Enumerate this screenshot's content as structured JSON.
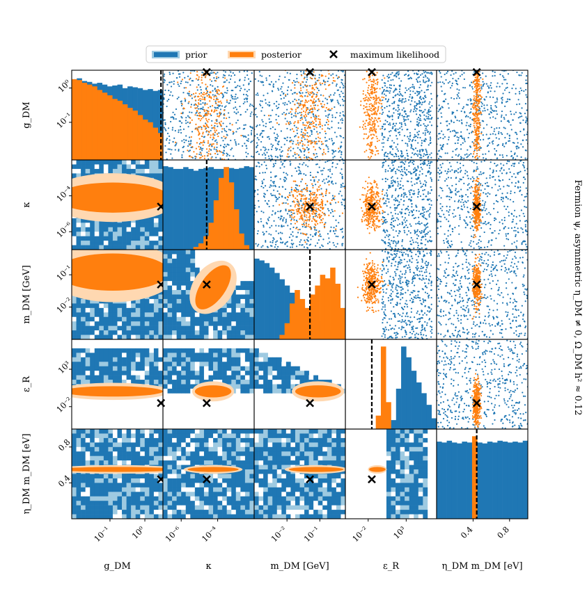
{
  "chart_data": {
    "type": "corner",
    "title": "Fermion ψ, asymmetric η_DM ≠ 0, Ω_DM h² ≈ 0.12",
    "colors": {
      "prior": "#1f77b4",
      "prior_light": "#9ecae1",
      "posterior": "#ff7f0e",
      "posterior_light": "#ffd8b1",
      "max_likelihood": "#000000"
    },
    "legend": [
      {
        "label": "prior",
        "kind": "prior"
      },
      {
        "label": "posterior",
        "kind": "posterior"
      },
      {
        "label": "maximum likelihood",
        "kind": "marker"
      }
    ],
    "legend_placement": "top-center",
    "parameters": [
      {
        "key": "g_DM",
        "label": "g_DM",
        "scale": "log",
        "range": [
          0.008,
          3.3
        ],
        "ticks": [
          {
            "v": 0.1,
            "t": "10⁻¹"
          },
          {
            "v": 1,
            "t": "10⁰"
          }
        ],
        "max_likelihood": 2.9
      },
      {
        "key": "kappa",
        "label": "κ",
        "scale": "log",
        "range": [
          1e-07,
          0.01
        ],
        "ticks": [
          {
            "v": 1e-06,
            "t": "10⁻⁶"
          },
          {
            "v": 0.0001,
            "t": "10⁻⁴"
          }
        ],
        "max_likelihood": 2.5e-05
      },
      {
        "key": "m_DM",
        "label": "m_DM [GeV]",
        "scale": "log",
        "range": [
          0.001,
          0.6
        ],
        "ticks": [
          {
            "v": 0.01,
            "t": "10⁻²"
          },
          {
            "v": 0.1,
            "t": "10⁻¹"
          }
        ],
        "max_likelihood": 0.05
      },
      {
        "key": "eps_R",
        "label": "ε_R",
        "scale": "log",
        "range": [
          1e-05,
          10000000.0
        ],
        "ticks": [
          {
            "v": 0.01,
            "t": "10⁻²"
          },
          {
            "v": 1000,
            "t": "10³"
          }
        ],
        "max_likelihood": 0.03
      },
      {
        "key": "eta_m",
        "label": "η_DM m_DM [eV]",
        "scale": "linear",
        "range": [
          0.0,
          1.0
        ],
        "ticks": [
          {
            "v": 0.4,
            "t": "0.4"
          },
          {
            "v": 0.8,
            "t": "0.8"
          }
        ],
        "max_likelihood": 0.44
      }
    ],
    "diagonal_histograms": [
      {
        "parameter": "g_DM",
        "prior": [
          0.9,
          0.91,
          0.88,
          0.87,
          0.85,
          0.86,
          0.84,
          0.82,
          0.83,
          0.84,
          0.8,
          0.82,
          0.81,
          0.8,
          0.78,
          0.79,
          0.77,
          0.78
        ],
        "posterior": [
          0.9,
          0.89,
          0.86,
          0.84,
          0.82,
          0.78,
          0.75,
          0.72,
          0.68,
          0.66,
          0.62,
          0.58,
          0.55,
          0.5,
          0.45,
          0.42,
          0.36,
          0.3
        ]
      },
      {
        "parameter": "kappa",
        "prior": [
          0.93,
          0.92,
          0.9,
          0.9,
          0.92,
          0.9,
          0.88,
          0.9,
          0.91,
          0.92,
          0.9,
          0.9,
          0.92,
          0.91,
          0.9,
          0.91,
          0.93,
          0.92
        ],
        "posterior": [
          0,
          0,
          0,
          0,
          0,
          0,
          0.03,
          0.07,
          0.15,
          0.3,
          0.55,
          0.8,
          0.92,
          0.75,
          0.45,
          0.18,
          0.05,
          0
        ]
      },
      {
        "parameter": "m_DM",
        "prior": [
          0.9,
          0.88,
          0.85,
          0.8,
          0.74,
          0.67,
          0.6,
          0.52,
          0.45,
          0.38,
          0.32,
          0.25,
          0.2,
          0.15,
          0.1,
          0.07,
          0.04,
          0.02
        ],
        "posterior": [
          0,
          0,
          0,
          0,
          0,
          0.05,
          0.18,
          0.4,
          0.55,
          0.45,
          0.35,
          0.5,
          0.6,
          0.72,
          0.68,
          0.8,
          0.62,
          0.35
        ]
      },
      {
        "parameter": "eps_R",
        "prior": [
          0,
          0,
          0,
          0,
          0,
          0,
          0,
          0,
          0,
          0.1,
          0.45,
          0.92,
          0.8,
          0.65,
          0.52,
          0.4,
          0.27,
          0.12
        ],
        "posterior": [
          0,
          0,
          0,
          0,
          0,
          0,
          0.15,
          0.92,
          0.3,
          0,
          0,
          0,
          0,
          0,
          0,
          0,
          0,
          0
        ]
      },
      {
        "parameter": "eta_m",
        "prior": [
          0.86,
          0.85,
          0.87,
          0.85,
          0.84,
          0.86,
          0.85,
          0.86,
          0.85,
          0.84,
          0.86,
          0.85,
          0.87,
          0.86,
          0.85,
          0.86,
          0.85,
          0.87
        ],
        "posterior": [
          0,
          0,
          0,
          0,
          0,
          0,
          0,
          0.92,
          0,
          0,
          0,
          0,
          0,
          0,
          0,
          0,
          0,
          0
        ]
      }
    ],
    "lower_triangle": "2D histograms: prior (blue, light blue outer contour) and posterior (orange, light orange outer contour)",
    "upper_triangle": "scatter samples: prior (blue dots) and posterior (orange dots)"
  }
}
